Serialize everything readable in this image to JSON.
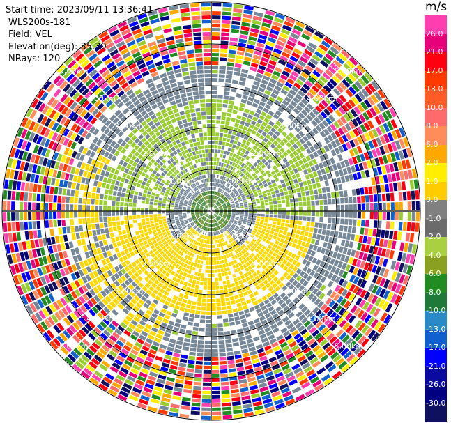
{
  "header": {
    "start_time": "Start time: 2023/09/11 13:36:41",
    "instrument": "WLS200s-181",
    "field": "Field: VEL",
    "elevation": "Elevation(deg): 35.30",
    "nrays": "NRays: 120"
  },
  "range_labels": [
    "1.00km",
    "2.00km",
    "3.00km",
    "4.00km",
    "5.00km"
  ],
  "colorbar": {
    "unit": "m/s",
    "ticks": [
      "26.0",
      "21.0",
      "17.0",
      "13.0",
      "10.0",
      "8.0",
      "6.0",
      "2.0",
      "1.0",
      "0.0",
      "-1.0",
      "-2.0",
      "-4.0",
      "-6.0",
      "-8.0",
      "-10.0",
      "-13.0",
      "-17.0",
      "-21.0",
      "-26.0",
      "-30.0"
    ],
    "colors": [
      "#ff3fb0",
      "#e8007a",
      "#ff0010",
      "#ff3a00",
      "#ff5c28",
      "#ff6a6a",
      "#ff8c5a",
      "#ffa800",
      "#ffee00",
      "#ffcc00",
      "#808080",
      "#6b6b6b",
      "#a8d040",
      "#8aa020",
      "#228b22",
      "#1f7a3a",
      "#2a8ac8",
      "#1060d0",
      "#0000ff",
      "#0a0aa0",
      "#000080",
      "#101060"
    ]
  },
  "colors": {
    "rings": "#000000",
    "gray": "#778899",
    "green": "#9acd32",
    "yellow": "#ffd800"
  }
}
